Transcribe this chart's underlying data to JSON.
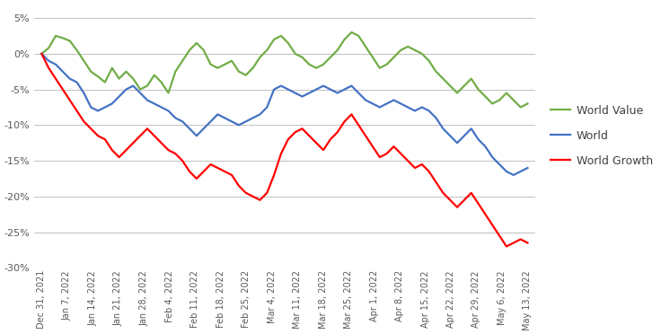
{
  "dates": [
    "Dec 31, 2021",
    "Jan 7, 2022",
    "Jan 14, 2022",
    "Jan 21, 2022",
    "Jan 28, 2022",
    "Feb 4, 2022",
    "Feb 11, 2022",
    "Feb 18, 2022",
    "Feb 25, 2022",
    "Mar 4, 2022",
    "Mar 11, 2022",
    "Mar 18, 2022",
    "Mar 25, 2022",
    "Apr 1, 2022",
    "Apr 8, 2022",
    "Apr 15, 2022",
    "Apr 22, 2022",
    "Apr 29, 2022",
    "May 6, 2022",
    "May 13, 2022"
  ],
  "world_value": [
    0.0,
    0.8,
    2.5,
    2.2,
    1.8,
    0.5,
    -1.0,
    -2.5,
    -3.2,
    -4.0,
    -2.0,
    -3.5,
    -2.5,
    -3.5,
    -5.0,
    -4.5,
    -3.0,
    -4.0,
    -5.5,
    -2.5,
    -1.0,
    0.5,
    1.5,
    0.5,
    -1.5,
    -2.0,
    -1.5,
    -1.0,
    -2.5,
    -3.0,
    -2.0,
    -0.5,
    0.5,
    2.0,
    2.5,
    1.5,
    0.0,
    -0.5,
    -1.5,
    -2.0,
    -1.5,
    -0.5,
    0.5,
    2.0,
    3.0,
    2.5,
    1.0,
    -0.5,
    -2.0,
    -1.5,
    -0.5,
    0.5,
    1.0,
    0.5,
    0.0,
    -1.0,
    -2.5,
    -3.5,
    -4.5,
    -5.5,
    -4.5,
    -3.5,
    -5.0,
    -6.0,
    -7.0,
    -6.5,
    -5.5,
    -6.5,
    -7.5,
    -7.0
  ],
  "world": [
    0.0,
    -1.0,
    -1.5,
    -2.5,
    -3.5,
    -4.0,
    -5.5,
    -7.5,
    -8.0,
    -7.5,
    -7.0,
    -6.0,
    -5.0,
    -4.5,
    -5.5,
    -6.5,
    -7.0,
    -7.5,
    -8.0,
    -9.0,
    -9.5,
    -10.5,
    -11.5,
    -10.5,
    -9.5,
    -8.5,
    -9.0,
    -9.5,
    -10.0,
    -9.5,
    -9.0,
    -8.5,
    -7.5,
    -5.0,
    -4.5,
    -5.0,
    -5.5,
    -6.0,
    -5.5,
    -5.0,
    -4.5,
    -5.0,
    -5.5,
    -5.0,
    -4.5,
    -5.5,
    -6.5,
    -7.0,
    -7.5,
    -7.0,
    -6.5,
    -7.0,
    -7.5,
    -8.0,
    -7.5,
    -8.0,
    -9.0,
    -10.5,
    -11.5,
    -12.5,
    -11.5,
    -10.5,
    -12.0,
    -13.0,
    -14.5,
    -15.5,
    -16.5,
    -17.0,
    -16.5,
    -16.0
  ],
  "world_growth": [
    0.0,
    -2.0,
    -3.5,
    -5.0,
    -6.5,
    -8.0,
    -9.5,
    -10.5,
    -11.5,
    -12.0,
    -13.5,
    -14.5,
    -13.5,
    -12.5,
    -11.5,
    -10.5,
    -11.5,
    -12.5,
    -13.5,
    -14.0,
    -15.0,
    -16.5,
    -17.5,
    -16.5,
    -15.5,
    -16.0,
    -16.5,
    -17.0,
    -18.5,
    -19.5,
    -20.0,
    -20.5,
    -19.5,
    -17.0,
    -14.0,
    -12.0,
    -11.0,
    -10.5,
    -11.5,
    -12.5,
    -13.5,
    -12.0,
    -11.0,
    -9.5,
    -8.5,
    -10.0,
    -11.5,
    -13.0,
    -14.5,
    -14.0,
    -13.0,
    -14.0,
    -15.0,
    -16.0,
    -15.5,
    -16.5,
    -18.0,
    -19.5,
    -20.5,
    -21.5,
    -20.5,
    -19.5,
    -21.0,
    -22.5,
    -24.0,
    -25.5,
    -27.0,
    -26.5,
    -26.0,
    -26.5
  ],
  "color_value": "#70AD47",
  "color_world": "#4472C4",
  "color_growth": "#FF0000",
  "ylim": [
    -30,
    7
  ],
  "yticks": [
    5,
    0,
    -5,
    -10,
    -15,
    -20,
    -25,
    -30
  ],
  "line_width": 1.6,
  "legend_labels": [
    "World Value",
    "World",
    "World Growth"
  ],
  "tick_dates_indices": [
    0,
    1,
    2,
    3,
    4,
    5,
    6,
    7,
    8,
    9,
    10,
    11,
    12,
    13,
    14,
    15,
    16,
    17,
    18,
    19
  ]
}
